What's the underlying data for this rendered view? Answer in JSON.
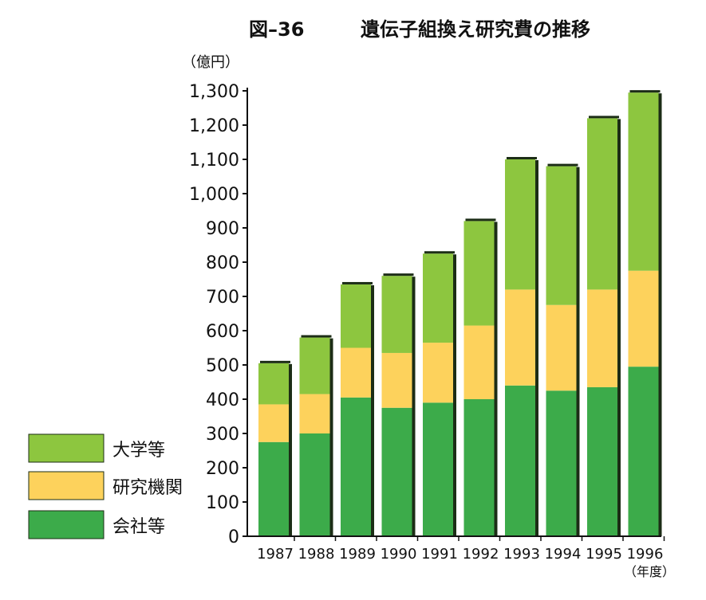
{
  "chart_data": {
    "type": "bar",
    "stacked": true,
    "figure_label": "図–36",
    "title": "遺伝子組換え研究費の推移",
    "ylabel": "（億円）",
    "xlabel": "（年度）",
    "ylim": [
      0,
      1300
    ],
    "yticks": [
      "0",
      "100",
      "200",
      "300",
      "400",
      "500",
      "600",
      "700",
      "800",
      "900",
      "1,000",
      "1,100",
      "1,200",
      "1,300"
    ],
    "ytick_values": [
      0,
      100,
      200,
      300,
      400,
      500,
      600,
      700,
      800,
      900,
      1000,
      1100,
      1200,
      1300
    ],
    "categories": [
      "1987",
      "1988",
      "1989",
      "1990",
      "1991",
      "1992",
      "1993",
      "1994",
      "1995",
      "1996"
    ],
    "series": [
      {
        "name": "会社等",
        "color": "#3cab4a",
        "values": [
          275,
          300,
          405,
          375,
          390,
          400,
          440,
          425,
          435,
          495
        ]
      },
      {
        "name": "研究機関",
        "color": "#fdd25c",
        "values": [
          110,
          115,
          145,
          160,
          175,
          215,
          280,
          250,
          285,
          280
        ]
      },
      {
        "name": "大学等",
        "color": "#8dc63f",
        "values": [
          120,
          165,
          185,
          225,
          260,
          305,
          380,
          405,
          500,
          520
        ]
      }
    ],
    "legend_order": [
      "大学等",
      "研究機関",
      "会社等"
    ],
    "legend_position": "bottom-left",
    "grid": false
  }
}
